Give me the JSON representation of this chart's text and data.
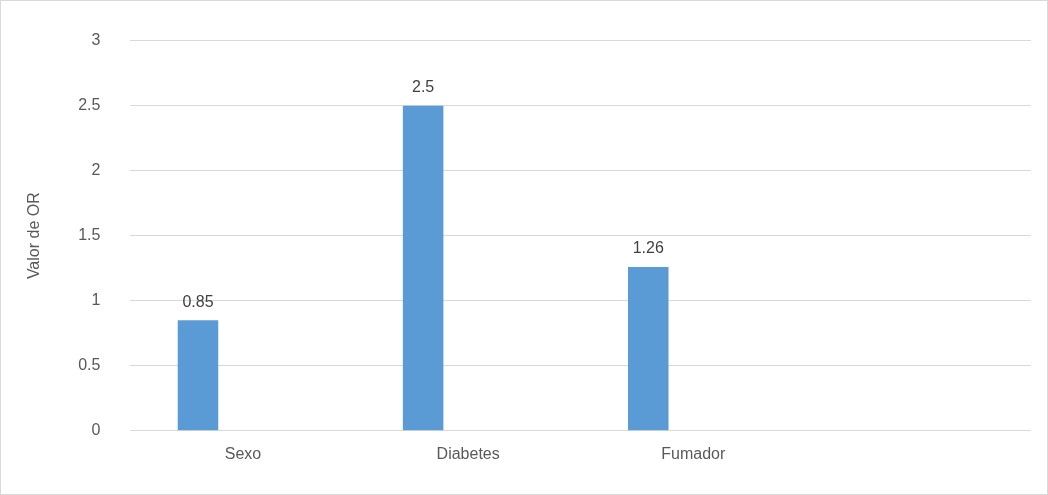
{
  "chart_data": {
    "type": "bar",
    "ylabel": "Valor de OR",
    "categories": [
      "Sexo",
      "Diabetes",
      "Fumador",
      null
    ],
    "values": [
      0.85,
      2.5,
      1.26,
      null
    ],
    "color": "#5b9bd5",
    "ylim": [
      0,
      3
    ],
    "yticks": [
      0,
      0.5,
      1,
      1.5,
      2,
      2.5,
      3
    ],
    "grid": "y",
    "data_labels": true,
    "legend": false
  }
}
